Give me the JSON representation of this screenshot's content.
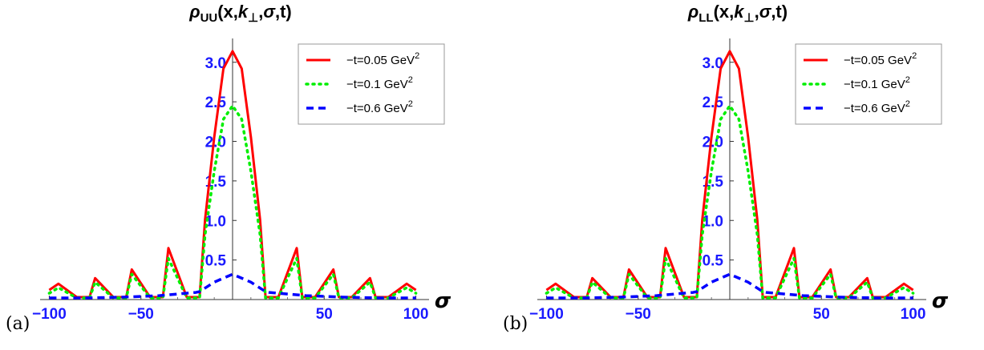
{
  "chart_data": [
    {
      "type": "line",
      "panel_label": "(a)",
      "title": "ρUU(x,k⊥,σ,t)",
      "title_parts": {
        "rho": "ρ",
        "sub": "UU",
        "args_a": "(x,",
        "k": "k",
        "perp": "⊥",
        "args_b": ",",
        "sigma": "σ",
        "args_c": ",t)"
      },
      "xlabel": "σ",
      "xlim": [
        -105,
        105
      ],
      "ylim": [
        0,
        3.2
      ],
      "x_ticks": [
        -100,
        -50,
        50,
        100
      ],
      "y_ticks": [
        0.5,
        1.0,
        1.5,
        2.0,
        2.5,
        3.0
      ],
      "y_tick_labels": [
        "0.5",
        "1.0",
        "1.5",
        "2.0",
        "2.5",
        "3.0"
      ],
      "grid": false,
      "legend_position": "top-right",
      "series": [
        {
          "name": "−t=0.05 GeV2",
          "name_base": "−t=0.05 GeV",
          "name_sup": "2",
          "color": "#ff0000",
          "style": "solid",
          "x": [
            -100,
            -95,
            -85,
            -78,
            -75,
            -65,
            -58,
            -55,
            -45,
            -38,
            -35,
            -25,
            -18,
            -15,
            -10,
            -5,
            0,
            5,
            10,
            15,
            18,
            25,
            35,
            38,
            45,
            55,
            58,
            65,
            75,
            78,
            85,
            95,
            100
          ],
          "y": [
            0.12,
            0.2,
            0.03,
            0.03,
            0.27,
            0.03,
            0.03,
            0.38,
            0.03,
            0.03,
            0.65,
            0.03,
            0.03,
            1.01,
            2.05,
            2.92,
            3.14,
            2.92,
            2.05,
            1.01,
            0.03,
            0.03,
            0.65,
            0.03,
            0.03,
            0.38,
            0.03,
            0.03,
            0.27,
            0.03,
            0.03,
            0.2,
            0.12
          ]
        },
        {
          "name": "−t=0.1 GeV2",
          "name_base": "−t=0.1 GeV",
          "name_sup": "2",
          "color": "#00ee00",
          "style": "dotted",
          "x": [
            -100,
            -95,
            -85,
            -78,
            -75,
            -65,
            -58,
            -55,
            -45,
            -38,
            -35,
            -25,
            -18,
            -15,
            -10,
            -5,
            0,
            5,
            10,
            15,
            18,
            25,
            35,
            38,
            45,
            55,
            58,
            65,
            75,
            78,
            85,
            95,
            100
          ],
          "y": [
            0.08,
            0.15,
            0.02,
            0.02,
            0.22,
            0.02,
            0.02,
            0.32,
            0.02,
            0.02,
            0.52,
            0.02,
            0.02,
            0.82,
            1.62,
            2.28,
            2.45,
            2.28,
            1.62,
            0.82,
            0.02,
            0.02,
            0.52,
            0.02,
            0.02,
            0.32,
            0.02,
            0.02,
            0.22,
            0.02,
            0.02,
            0.15,
            0.08
          ]
        },
        {
          "name": "−t=0.6 GeV2",
          "name_base": "−t=0.6 GeV",
          "name_sup": "2",
          "color": "#0000ff",
          "style": "dashed",
          "x": [
            -100,
            -80,
            -60,
            -40,
            -30,
            -20,
            -18,
            -10,
            0,
            10,
            18,
            20,
            30,
            40,
            60,
            80,
            100
          ],
          "y": [
            0.02,
            0.02,
            0.03,
            0.05,
            0.07,
            0.09,
            0.1,
            0.22,
            0.32,
            0.22,
            0.1,
            0.09,
            0.07,
            0.05,
            0.03,
            0.02,
            0.02
          ]
        }
      ]
    },
    {
      "type": "line",
      "panel_label": "(b)",
      "title": "ρLL(x,k⊥,σ,t)",
      "title_parts": {
        "rho": "ρ",
        "sub": "LL",
        "args_a": "(x,",
        "k": "k",
        "perp": "⊥",
        "args_b": ",",
        "sigma": "σ",
        "args_c": ",t)"
      },
      "xlabel": "σ",
      "xlim": [
        -105,
        105
      ],
      "ylim": [
        0,
        3.2
      ],
      "x_ticks": [
        -100,
        -50,
        50,
        100
      ],
      "y_ticks": [
        0.5,
        1.0,
        1.5,
        2.0,
        2.5,
        3.0
      ],
      "y_tick_labels": [
        "0.5",
        "1.0",
        "1.5",
        "2.0",
        "2.5",
        "3.0"
      ],
      "grid": false,
      "legend_position": "top-right",
      "series": [
        {
          "name": "−t=0.05 GeV2",
          "name_base": "−t=0.05 GeV",
          "name_sup": "2",
          "color": "#ff0000",
          "style": "solid",
          "x": [
            -100,
            -95,
            -85,
            -78,
            -75,
            -65,
            -58,
            -55,
            -45,
            -38,
            -35,
            -25,
            -18,
            -15,
            -10,
            -5,
            0,
            5,
            10,
            15,
            18,
            25,
            35,
            38,
            45,
            55,
            58,
            65,
            75,
            78,
            85,
            95,
            100
          ],
          "y": [
            0.12,
            0.2,
            0.03,
            0.03,
            0.27,
            0.03,
            0.03,
            0.38,
            0.03,
            0.03,
            0.65,
            0.03,
            0.03,
            1.01,
            2.05,
            2.92,
            3.14,
            2.92,
            2.05,
            1.01,
            0.03,
            0.03,
            0.65,
            0.03,
            0.03,
            0.38,
            0.03,
            0.03,
            0.27,
            0.03,
            0.03,
            0.2,
            0.12
          ]
        },
        {
          "name": "−t=0.1 GeV2",
          "name_base": "−t=0.1 GeV",
          "name_sup": "2",
          "color": "#00ee00",
          "style": "dotted",
          "x": [
            -100,
            -95,
            -85,
            -78,
            -75,
            -65,
            -58,
            -55,
            -45,
            -38,
            -35,
            -25,
            -18,
            -15,
            -10,
            -5,
            0,
            5,
            10,
            15,
            18,
            25,
            35,
            38,
            45,
            55,
            58,
            65,
            75,
            78,
            85,
            95,
            100
          ],
          "y": [
            0.08,
            0.15,
            0.02,
            0.02,
            0.22,
            0.02,
            0.02,
            0.32,
            0.02,
            0.02,
            0.52,
            0.02,
            0.02,
            0.82,
            1.62,
            2.28,
            2.45,
            2.28,
            1.62,
            0.82,
            0.02,
            0.02,
            0.52,
            0.02,
            0.02,
            0.32,
            0.02,
            0.02,
            0.22,
            0.02,
            0.02,
            0.15,
            0.08
          ]
        },
        {
          "name": "−t=0.6 GeV2",
          "name_base": "−t=0.6 GeV",
          "name_sup": "2",
          "color": "#0000ff",
          "style": "dashed",
          "x": [
            -100,
            -80,
            -60,
            -40,
            -30,
            -20,
            -18,
            -10,
            0,
            10,
            18,
            20,
            30,
            40,
            60,
            80,
            100
          ],
          "y": [
            0.02,
            0.02,
            0.03,
            0.05,
            0.07,
            0.09,
            0.1,
            0.22,
            0.32,
            0.22,
            0.1,
            0.09,
            0.07,
            0.05,
            0.03,
            0.02,
            0.02
          ]
        }
      ]
    }
  ]
}
